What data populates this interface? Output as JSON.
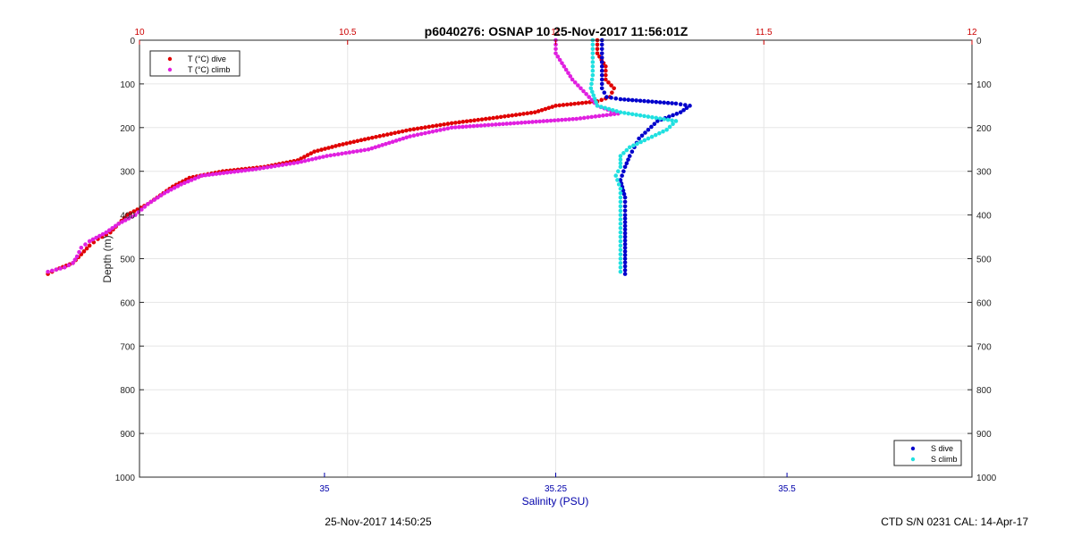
{
  "figure": {
    "title": "p6040276: OSNAP 10 25-Nov-2017 11:56:01Z",
    "footer_left": "25-Nov-2017 14:50:25",
    "footer_right": "CTD S/N 0231  CAL: 14-Apr-17"
  },
  "colors": {
    "t_dive": "#e00000",
    "t_climb": "#e020e0",
    "s_dive": "#0000cc",
    "s_climb": "#20e0e0",
    "temp_axis": "#cc0000",
    "sal_axis": "#0000aa",
    "grid": "#e6e6e6",
    "axis": "#262626"
  },
  "chart_data": {
    "type": "scatter",
    "ylabel": "Depth (m)",
    "xlabel": "Salinity (PSU)",
    "ylim": [
      1000,
      0
    ],
    "y_ticks": [
      "0",
      "100",
      "200",
      "300",
      "400",
      "500",
      "600",
      "700",
      "800",
      "900",
      "1000"
    ],
    "y_ticks_right": [
      "0",
      "100",
      "200",
      "300",
      "400",
      "500",
      "600",
      "700",
      "800",
      "900",
      "1000"
    ],
    "temp_axis": {
      "range": [
        10,
        12
      ],
      "ticks": [
        "10",
        "10.5",
        "11",
        "11.5",
        "12"
      ]
    },
    "sal_axis": {
      "range": [
        34.8,
        35.7
      ],
      "ticks": [
        "35",
        "35.25",
        "35.5"
      ]
    },
    "legend_top": {
      "placement": "top-left",
      "entries": [
        "T (°C) dive",
        "T (°C) climb"
      ]
    },
    "legend_bottom": {
      "placement": "bottom-right",
      "entries": [
        "S dive",
        "S climb"
      ]
    },
    "grid": true,
    "series": [
      {
        "name": "T (°C) dive",
        "axis": "temp",
        "points": [
          [
            11.1,
            0
          ],
          [
            11.1,
            30
          ],
          [
            11.12,
            60
          ],
          [
            11.12,
            90
          ],
          [
            11.14,
            110
          ],
          [
            11.13,
            130
          ],
          [
            11.1,
            140
          ],
          [
            11.0,
            150
          ],
          [
            10.95,
            165
          ],
          [
            10.85,
            178
          ],
          [
            10.75,
            190
          ],
          [
            10.65,
            205
          ],
          [
            10.55,
            225
          ],
          [
            10.48,
            240
          ],
          [
            10.42,
            255
          ],
          [
            10.38,
            275
          ],
          [
            10.3,
            290
          ],
          [
            10.2,
            300
          ],
          [
            10.12,
            315
          ],
          [
            10.08,
            335
          ],
          [
            10.05,
            355
          ],
          [
            10.02,
            375
          ],
          [
            9.97,
            400
          ],
          [
            9.95,
            420
          ],
          [
            9.93,
            440
          ],
          [
            9.9,
            455
          ],
          [
            9.88,
            470
          ],
          [
            9.86,
            490
          ],
          [
            9.84,
            510
          ],
          [
            9.8,
            525
          ],
          [
            9.78,
            535
          ]
        ]
      },
      {
        "name": "T (°C) climb",
        "axis": "temp",
        "points": [
          [
            11.0,
            0
          ],
          [
            11.0,
            30
          ],
          [
            11.02,
            60
          ],
          [
            11.04,
            90
          ],
          [
            11.06,
            110
          ],
          [
            11.08,
            130
          ],
          [
            11.1,
            150
          ],
          [
            11.15,
            168
          ],
          [
            11.05,
            180
          ],
          [
            10.9,
            190
          ],
          [
            10.75,
            200
          ],
          [
            10.65,
            220
          ],
          [
            10.55,
            250
          ],
          [
            10.45,
            265
          ],
          [
            10.38,
            280
          ],
          [
            10.28,
            295
          ],
          [
            10.15,
            310
          ],
          [
            10.1,
            330
          ],
          [
            10.06,
            350
          ],
          [
            10.02,
            375
          ],
          [
            9.99,
            400
          ],
          [
            9.95,
            420
          ],
          [
            9.92,
            440
          ],
          [
            9.88,
            460
          ],
          [
            9.86,
            475
          ],
          [
            9.85,
            495
          ],
          [
            9.84,
            510
          ],
          [
            9.82,
            520
          ],
          [
            9.78,
            530
          ]
        ]
      },
      {
        "name": "S dive",
        "axis": "sal",
        "points": [
          [
            35.3,
            0
          ],
          [
            35.3,
            40
          ],
          [
            35.3,
            80
          ],
          [
            35.3,
            110
          ],
          [
            35.305,
            130
          ],
          [
            35.32,
            135
          ],
          [
            35.35,
            140
          ],
          [
            35.38,
            145
          ],
          [
            35.395,
            150
          ],
          [
            35.385,
            165
          ],
          [
            35.36,
            185
          ],
          [
            35.35,
            205
          ],
          [
            35.34,
            225
          ],
          [
            35.335,
            245
          ],
          [
            35.33,
            265
          ],
          [
            35.325,
            290
          ],
          [
            35.32,
            320
          ],
          [
            35.325,
            360
          ],
          [
            35.325,
            400
          ],
          [
            35.325,
            450
          ],
          [
            35.325,
            500
          ],
          [
            35.325,
            535
          ]
        ]
      },
      {
        "name": "S climb",
        "axis": "sal",
        "points": [
          [
            35.29,
            0
          ],
          [
            35.29,
            40
          ],
          [
            35.29,
            80
          ],
          [
            35.288,
            110
          ],
          [
            35.295,
            150
          ],
          [
            35.32,
            165
          ],
          [
            35.35,
            175
          ],
          [
            35.38,
            185
          ],
          [
            35.37,
            205
          ],
          [
            35.35,
            225
          ],
          [
            35.33,
            245
          ],
          [
            35.32,
            265
          ],
          [
            35.32,
            290
          ],
          [
            35.315,
            310
          ],
          [
            35.32,
            340
          ],
          [
            35.32,
            380
          ],
          [
            35.32,
            420
          ],
          [
            35.32,
            460
          ],
          [
            35.32,
            500
          ],
          [
            35.32,
            530
          ]
        ]
      }
    ]
  }
}
